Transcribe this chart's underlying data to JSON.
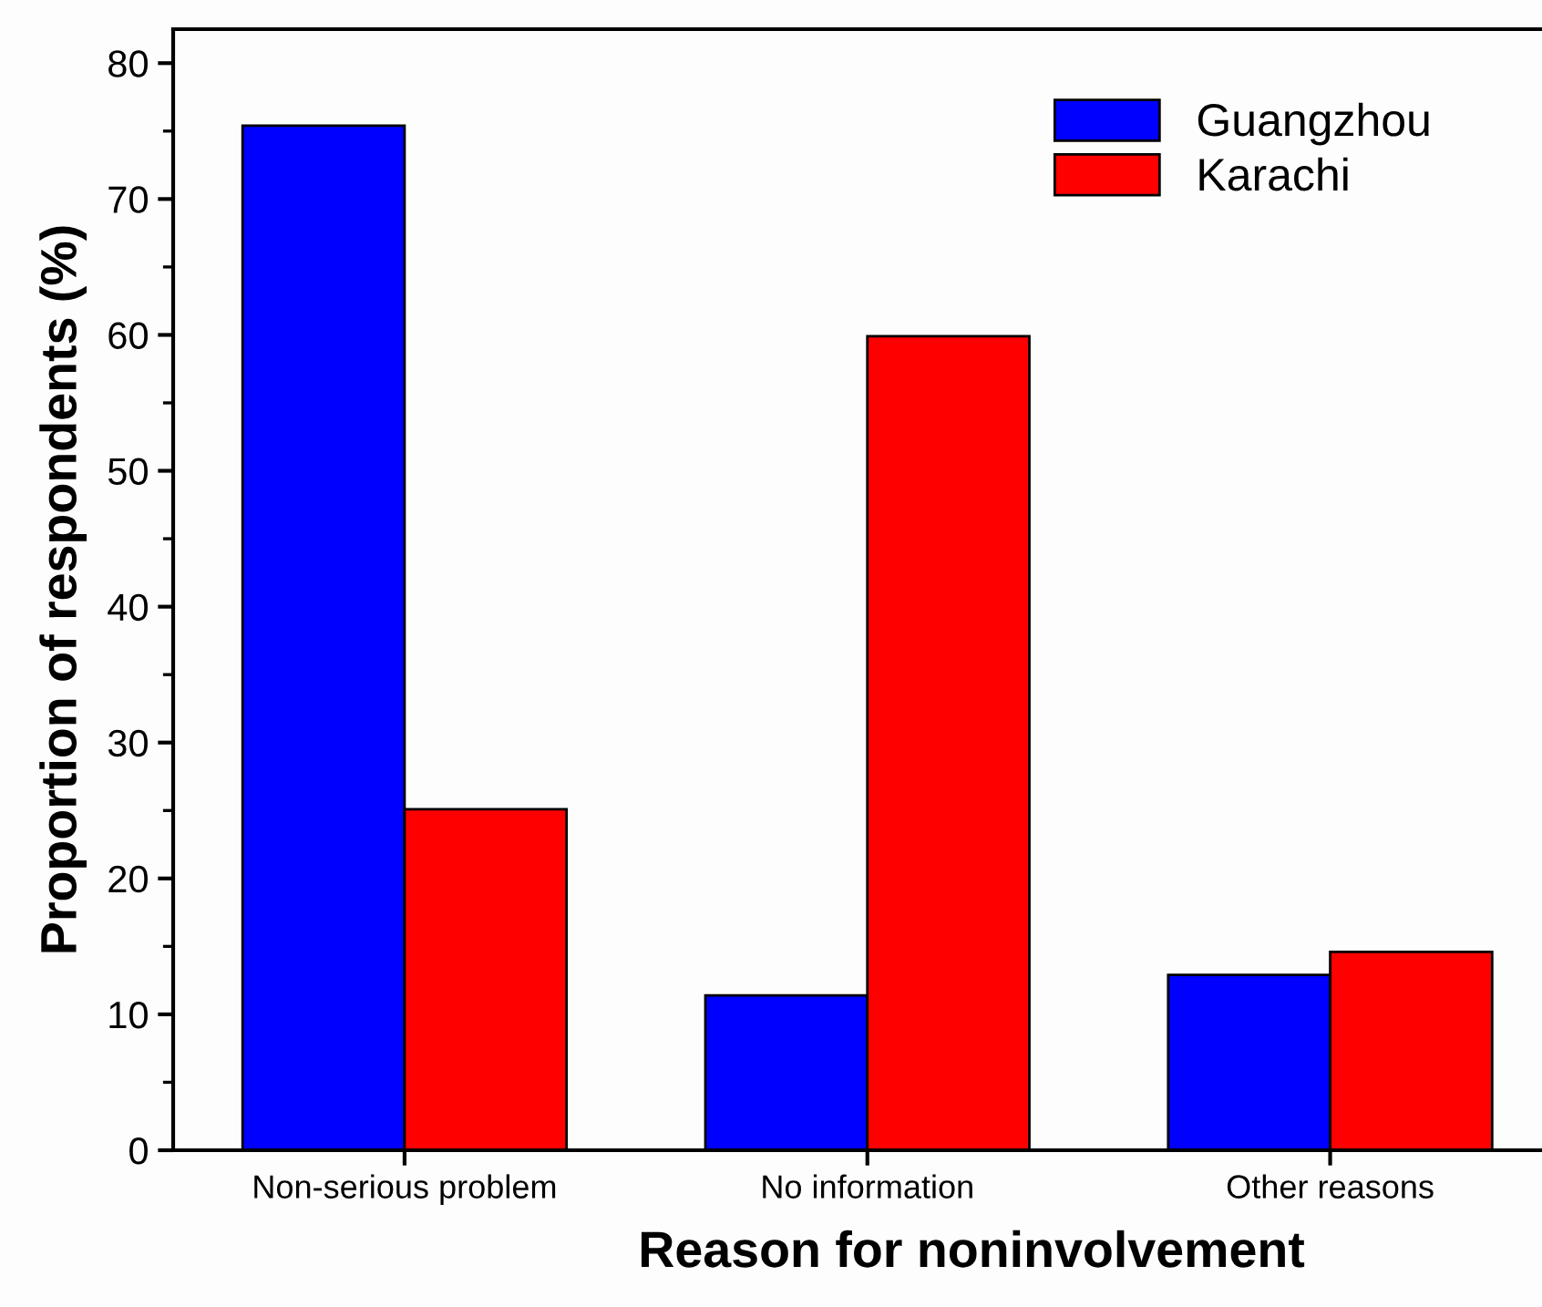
{
  "chart_data": {
    "type": "bar",
    "xlabel": "Reason for noninvolvement",
    "ylabel": "Proportion of respondents (%)",
    "categories": [
      "Non-serious problem",
      "No information",
      "Other reasons"
    ],
    "series": [
      {
        "name": "Guangzhou",
        "color": "#0000ff",
        "values": [
          75.4,
          11.4,
          12.9
        ]
      },
      {
        "name": "Karachi",
        "color": "#ff0000",
        "values": [
          25.1,
          59.9,
          14.6
        ]
      }
    ],
    "ylim": [
      0,
      82.5
    ],
    "yticks": [
      0,
      10,
      20,
      30,
      40,
      50,
      60,
      70,
      80
    ],
    "grid": false,
    "legend": "top right"
  }
}
